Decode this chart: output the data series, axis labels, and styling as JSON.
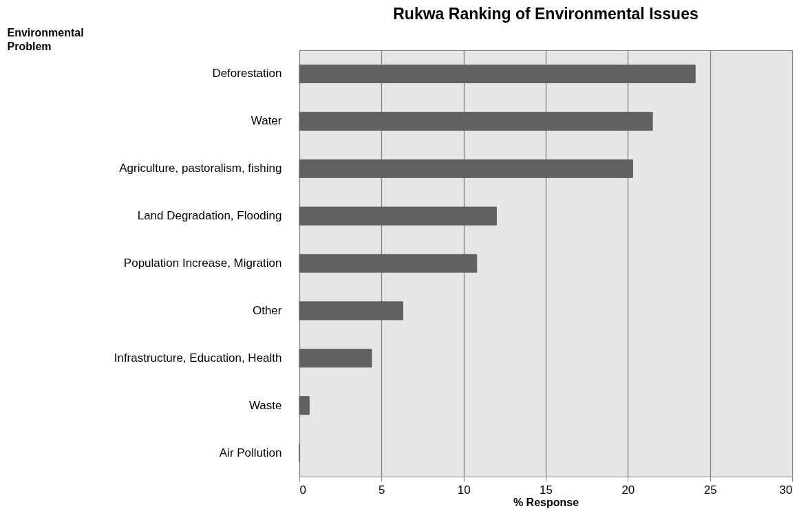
{
  "chart_data": {
    "type": "bar",
    "orientation": "horizontal",
    "title": "Rukwa Ranking of Environmental Issues",
    "xlabel": "% Response",
    "ylabel": "Environmental Problem",
    "categories": [
      "Deforestation",
      "Water ",
      "Agriculture, pastoralism, fishing",
      "Land Degradation, Flooding",
      "Population Increase, Migration",
      "Other",
      "Infrastructure, Education, Health",
      "Waste",
      "Air Pollution"
    ],
    "values": [
      24.1,
      21.5,
      20.3,
      12.0,
      10.8,
      6.3,
      4.4,
      0.6,
      0
    ],
    "color": "#606060",
    "xlim": [
      0,
      30
    ],
    "xticks": [
      0,
      5,
      10,
      15,
      20,
      25,
      30
    ],
    "grid": "x"
  }
}
